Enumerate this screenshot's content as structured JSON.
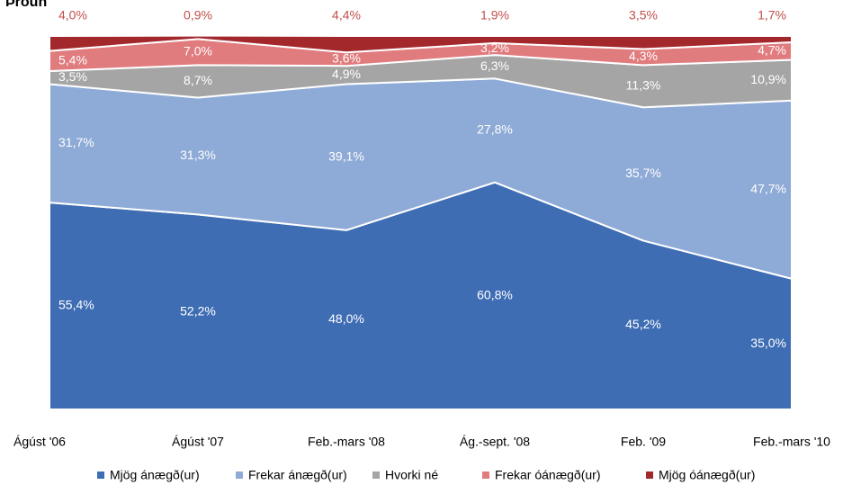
{
  "chart_data": {
    "type": "area",
    "stacked": true,
    "title": "Þróun",
    "categories": [
      "Ágúst '06",
      "Ágúst '07",
      "Feb.-mars '08",
      "Ág.-sept. '08",
      "Feb. '09",
      "Feb.-mars '10"
    ],
    "ylim": [
      0,
      100
    ],
    "legend": "bottom",
    "series": [
      {
        "name": "Mjög ánægð(ur)",
        "color": "#3e6db4",
        "values": [
          55.4,
          52.2,
          48.0,
          60.8,
          45.2,
          35.0
        ],
        "value_labels": [
          "55,4%",
          "52,2%",
          "48,0%",
          "60,8%",
          "45,2%",
          "35,0%"
        ]
      },
      {
        "name": "Frekar ánægð(ur)",
        "color": "#8eaad6",
        "values": [
          31.7,
          31.3,
          39.1,
          27.8,
          35.7,
          47.7
        ],
        "value_labels": [
          "31,7%",
          "31,3%",
          "39,1%",
          "27,8%",
          "35,7%",
          "47,7%"
        ]
      },
      {
        "name": "Hvorki né",
        "color": "#a5a5a5",
        "values": [
          3.5,
          8.7,
          4.9,
          6.3,
          11.3,
          10.9
        ],
        "value_labels": [
          "3,5%",
          "8,7%",
          "4,9%",
          "6,3%",
          "11,3%",
          "10,9%"
        ]
      },
      {
        "name": "Frekar óánægð(ur)",
        "color": "#e07b7e",
        "values": [
          5.4,
          7.0,
          3.6,
          3.2,
          4.3,
          4.7
        ],
        "value_labels": [
          "5,4%",
          "7,0%",
          "3,6%",
          "3,2%",
          "4,3%",
          "4,7%"
        ]
      },
      {
        "name": "Mjög óánægð(ur)",
        "color": "#a3282c",
        "values": [
          4.0,
          0.9,
          4.4,
          1.9,
          3.5,
          1.7
        ],
        "value_labels": [
          "4,0%",
          "0,9%",
          "4,4%",
          "1,9%",
          "3,5%",
          "1,7%"
        ]
      }
    ]
  }
}
